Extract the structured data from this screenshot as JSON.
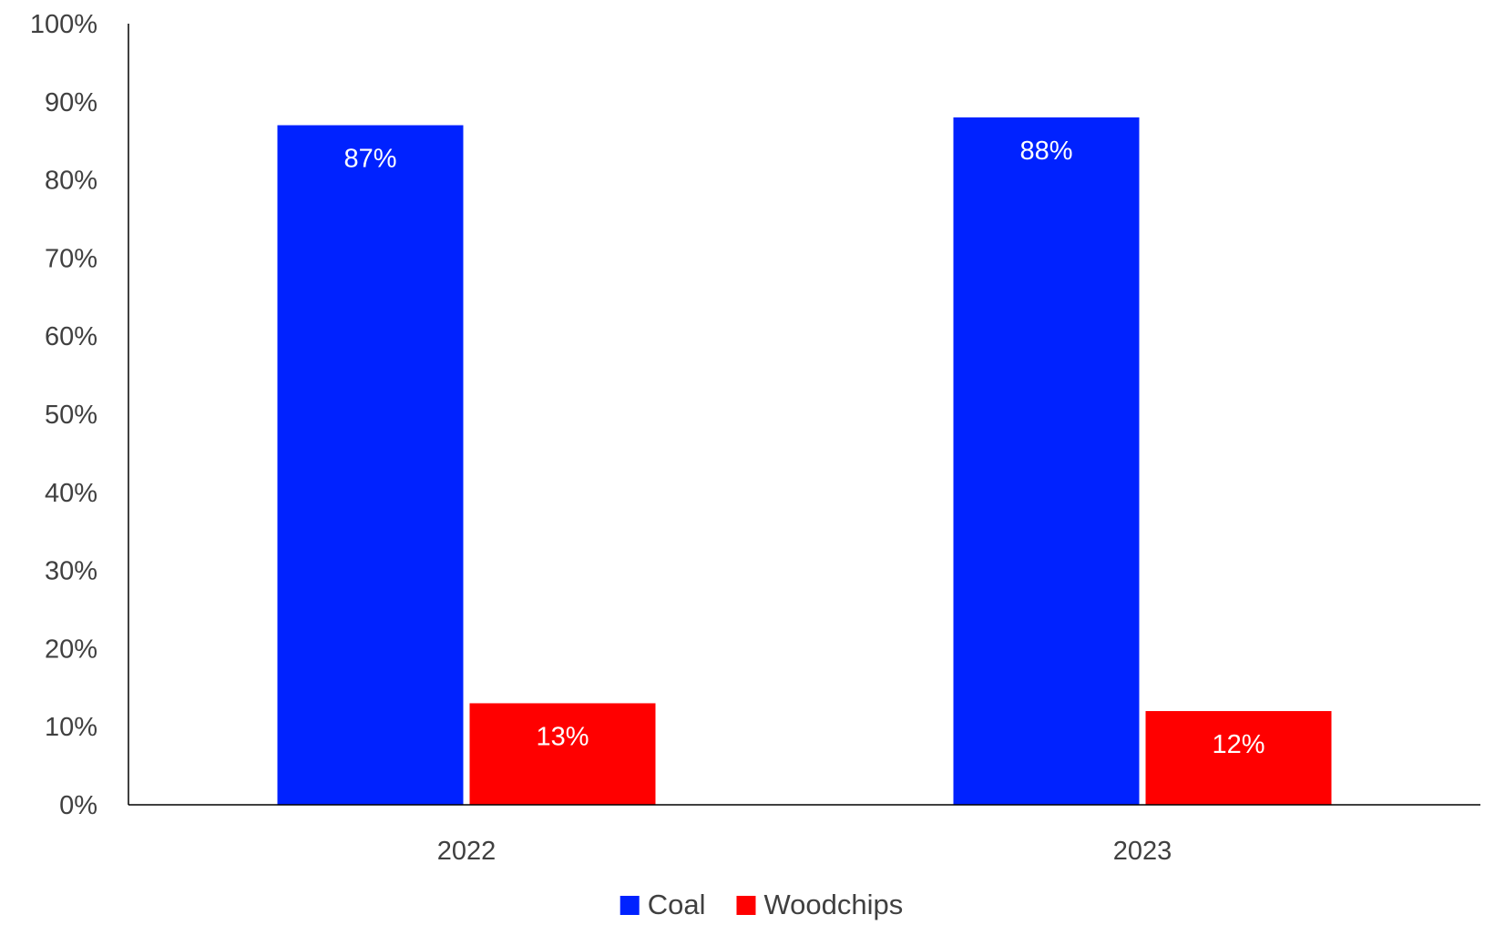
{
  "chart_data": {
    "type": "bar",
    "title": "",
    "xlabel": "",
    "ylabel": "",
    "categories": [
      "2022",
      "2023"
    ],
    "series": [
      {
        "name": "Coal",
        "color": "#0022ff",
        "values": [
          87,
          88
        ],
        "labels": [
          "87%",
          "88%"
        ]
      },
      {
        "name": "Woodchips",
        "color": "#ff0000",
        "values": [
          13,
          12
        ],
        "labels": [
          "13%",
          "12%"
        ]
      }
    ],
    "ylim": [
      0,
      100
    ],
    "y_ticks": [
      0,
      10,
      20,
      30,
      40,
      50,
      60,
      70,
      80,
      90,
      100
    ],
    "y_tick_labels": [
      "0%",
      "10%",
      "20%",
      "30%",
      "40%",
      "50%",
      "60%",
      "70%",
      "80%",
      "90%",
      "100%"
    ],
    "grid": false,
    "legend_position": "bottom-center",
    "data_label_position": "inside-top"
  }
}
